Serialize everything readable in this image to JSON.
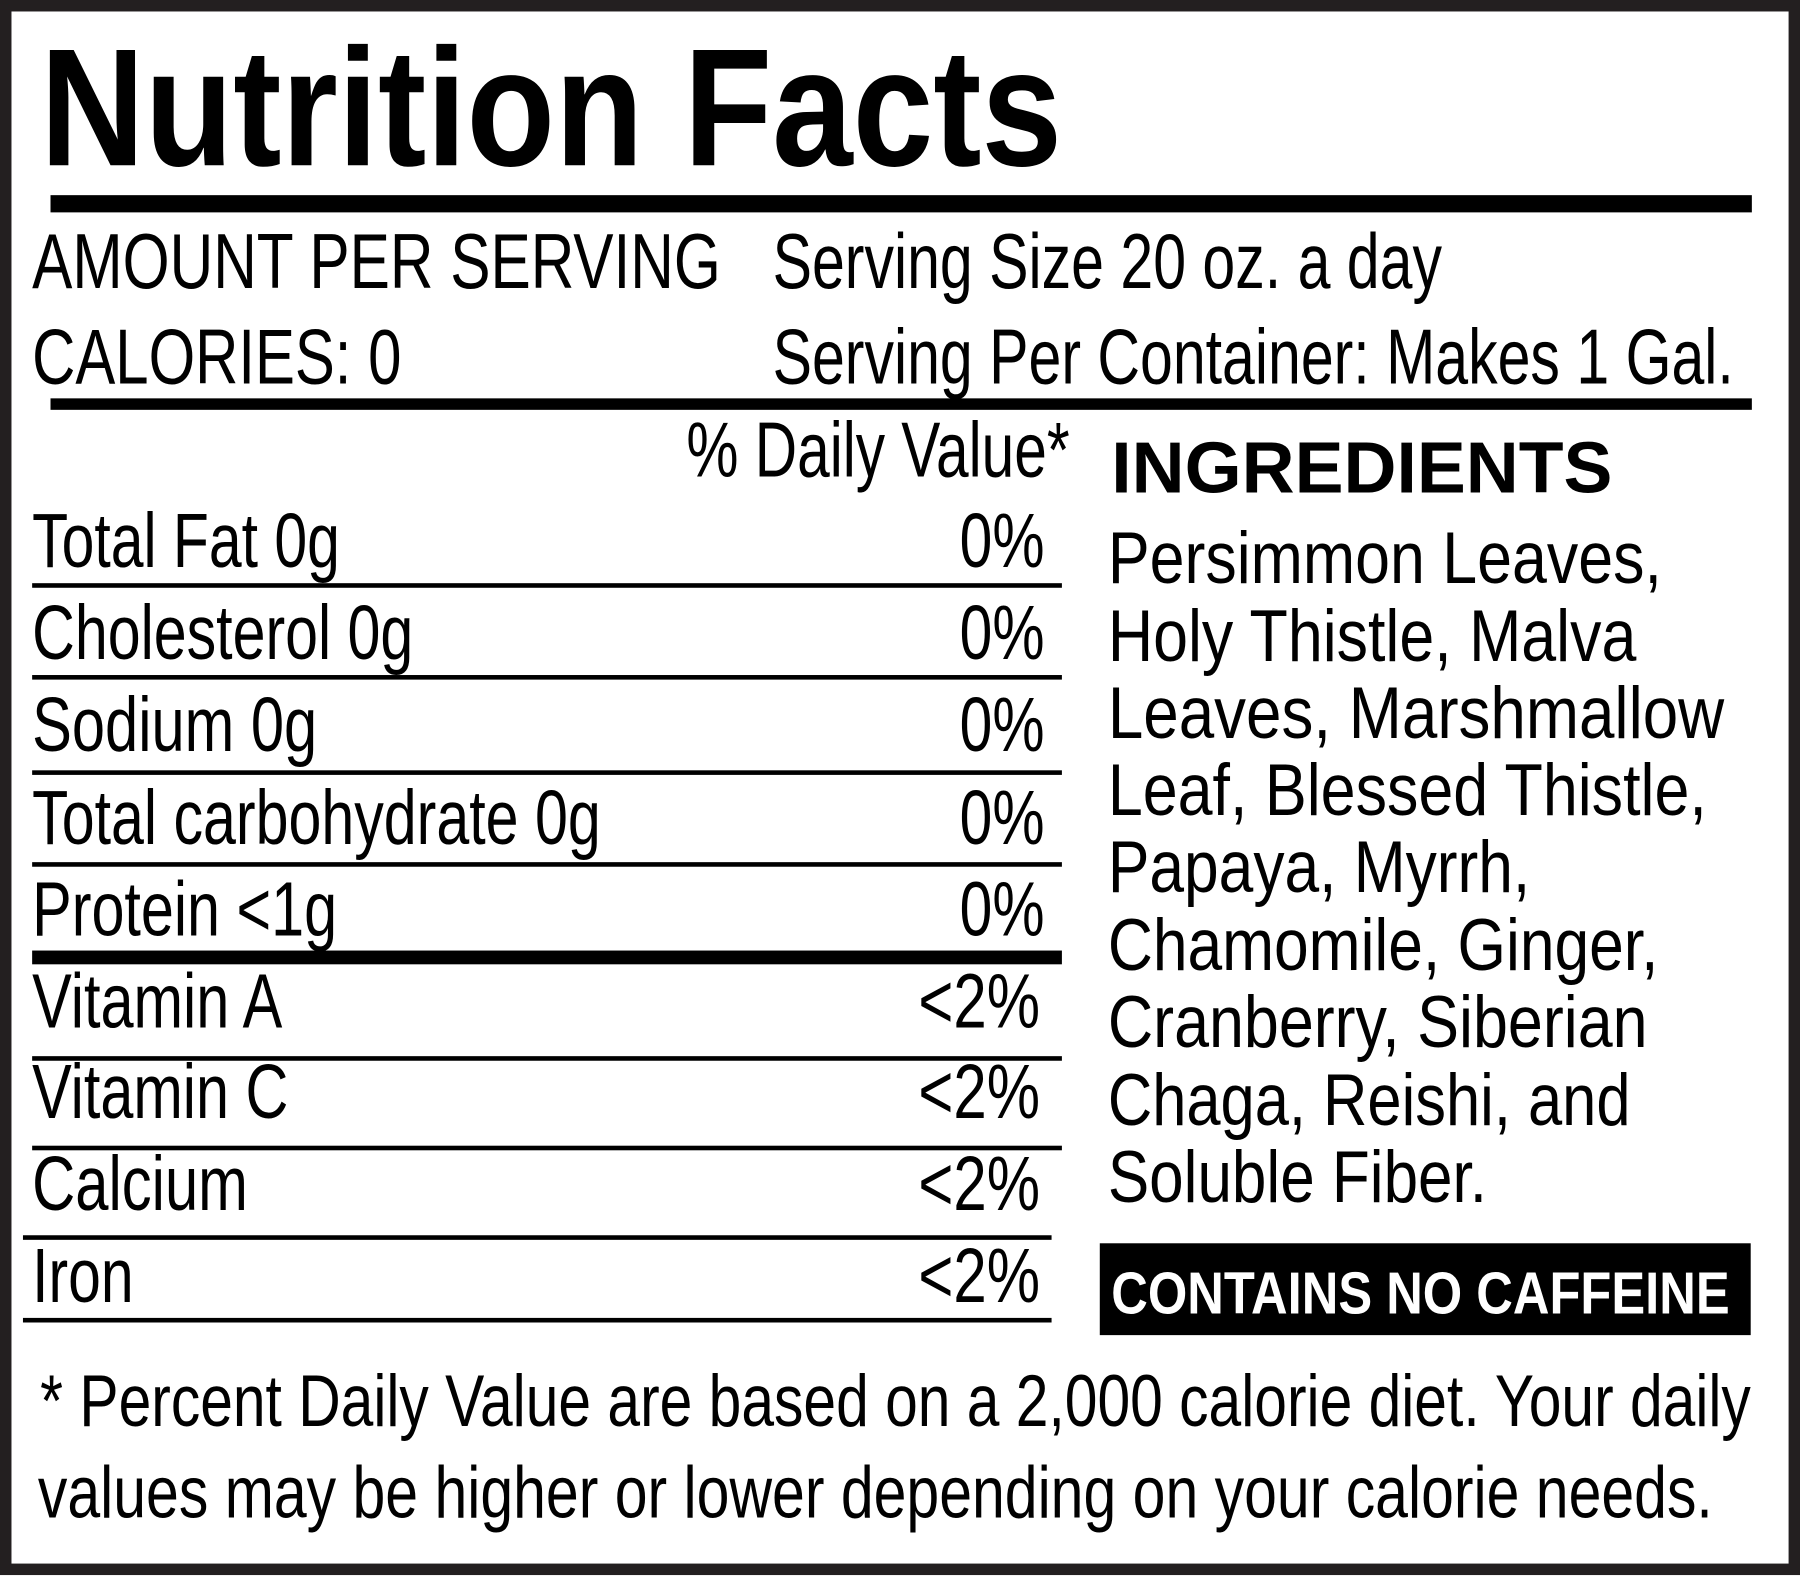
{
  "title": "Nutrition Facts",
  "header": {
    "amount_per_serving": "AMOUNT PER SERVING",
    "calories": "CALORIES: 0",
    "serving_size": "Serving Size 20 oz. a day",
    "servings_per_container": "Serving Per Container: Makes 1 Gal."
  },
  "daily_value_header": "% Daily Value*",
  "nutrients": [
    {
      "label": "Total Fat 0g",
      "dv": "0%"
    },
    {
      "label": "Cholesterol 0g",
      "dv": "0%"
    },
    {
      "label": "Sodium 0g",
      "dv": "0%"
    },
    {
      "label": "Total carbohydrate 0g",
      "dv": "0%"
    },
    {
      "label": "Protein <1g",
      "dv": "0%"
    },
    {
      "label": "Vitamin A",
      "dv": "<2%"
    },
    {
      "label": "Vitamin C",
      "dv": "<2%"
    },
    {
      "label": "Calcium",
      "dv": "<2%"
    },
    {
      "label": "Iron",
      "dv": "<2%"
    }
  ],
  "ingredients": {
    "heading": "INGREDIENTS",
    "lines": [
      "Persimmon Leaves,",
      "Holy Thistle, Malva",
      "Leaves, Marshmallow",
      "Leaf, Blessed Thistle,",
      "Papaya, Myrrh,",
      "Chamomile, Ginger,",
      "Cranberry, Siberian",
      "Chaga, Reishi, and",
      "Soluble Fiber."
    ]
  },
  "caffeine_badge": "CONTAINS NO CAFFEINE",
  "footnote": {
    "line1": "* Percent Daily Value are based on a 2,000 calorie diet. Your daily",
    "line2": "values may be higher or lower depending on your calorie needs."
  },
  "colors": {
    "ink": "#000000",
    "frame": "#231f20",
    "background": "#ffffff",
    "badge_text": "#ffffff"
  }
}
